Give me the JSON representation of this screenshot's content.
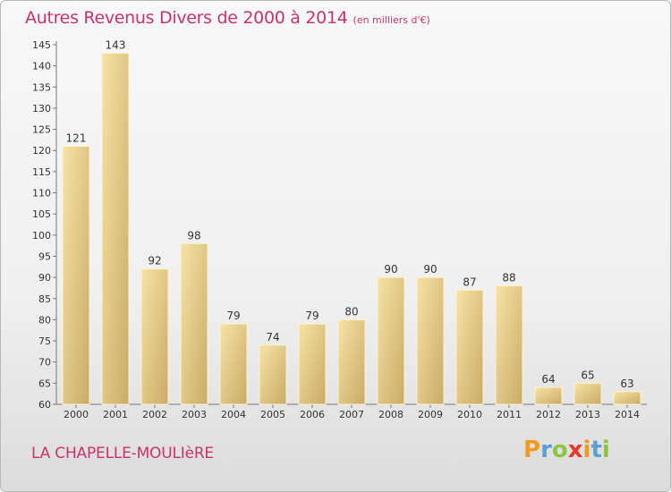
{
  "chart_data": {
    "type": "bar",
    "title": "Autres Revenus Divers de 2000 à 2014",
    "subtitle": "(en milliers d'€)",
    "categories": [
      "2000",
      "2001",
      "2002",
      "2003",
      "2004",
      "2005",
      "2006",
      "2007",
      "2008",
      "2009",
      "2010",
      "2011",
      "2012",
      "2013",
      "2014"
    ],
    "values": [
      121,
      143,
      92,
      98,
      79,
      74,
      79,
      80,
      90,
      90,
      87,
      88,
      64,
      65,
      63
    ],
    "ylim": [
      60,
      145
    ],
    "yticks": [
      60,
      65,
      70,
      75,
      80,
      85,
      90,
      95,
      100,
      105,
      110,
      115,
      120,
      125,
      130,
      135,
      140,
      145
    ],
    "data_labels": true,
    "grid": false,
    "colors": {
      "bar_light": "#f6e3a6",
      "bar_dark": "#c9ab66",
      "title": "#c9336b"
    }
  },
  "footer": {
    "commune": "LA CHAPELLE-MOULIèRE",
    "logo_letters": [
      {
        "char": "P",
        "color": "#f29a1e"
      },
      {
        "char": "r",
        "color": "#5aa0d6"
      },
      {
        "char": "o",
        "color": "#8cc63f"
      },
      {
        "char": "x",
        "color": "#e23a2a"
      },
      {
        "char": "i",
        "color": "#f29a1e"
      },
      {
        "char": "t",
        "color": "#5aa0d6"
      },
      {
        "char": "i",
        "color": "#8cc63f"
      }
    ]
  }
}
